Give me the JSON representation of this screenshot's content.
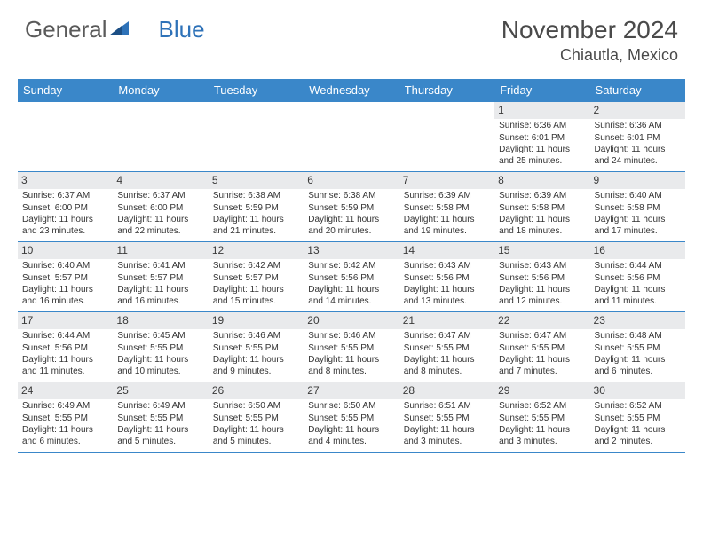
{
  "brand": {
    "general": "General",
    "blue": "Blue"
  },
  "title": "November 2024",
  "location": "Chiautla, Mexico",
  "colors": {
    "header_bg": "#3a87c9",
    "header_text": "#ffffff",
    "cell_border": "#3a87c9",
    "daynum_bg": "#e9eaec",
    "text": "#333333",
    "logo_gray": "#5a5a5a",
    "logo_blue": "#2e72b8",
    "title_color": "#4a4a4a"
  },
  "day_names": [
    "Sunday",
    "Monday",
    "Tuesday",
    "Wednesday",
    "Thursday",
    "Friday",
    "Saturday"
  ],
  "weeks": [
    [
      null,
      null,
      null,
      null,
      null,
      {
        "day": "1",
        "sunrise": "Sunrise: 6:36 AM",
        "sunset": "Sunset: 6:01 PM",
        "daylight": "Daylight: 11 hours and 25 minutes."
      },
      {
        "day": "2",
        "sunrise": "Sunrise: 6:36 AM",
        "sunset": "Sunset: 6:01 PM",
        "daylight": "Daylight: 11 hours and 24 minutes."
      }
    ],
    [
      {
        "day": "3",
        "sunrise": "Sunrise: 6:37 AM",
        "sunset": "Sunset: 6:00 PM",
        "daylight": "Daylight: 11 hours and 23 minutes."
      },
      {
        "day": "4",
        "sunrise": "Sunrise: 6:37 AM",
        "sunset": "Sunset: 6:00 PM",
        "daylight": "Daylight: 11 hours and 22 minutes."
      },
      {
        "day": "5",
        "sunrise": "Sunrise: 6:38 AM",
        "sunset": "Sunset: 5:59 PM",
        "daylight": "Daylight: 11 hours and 21 minutes."
      },
      {
        "day": "6",
        "sunrise": "Sunrise: 6:38 AM",
        "sunset": "Sunset: 5:59 PM",
        "daylight": "Daylight: 11 hours and 20 minutes."
      },
      {
        "day": "7",
        "sunrise": "Sunrise: 6:39 AM",
        "sunset": "Sunset: 5:58 PM",
        "daylight": "Daylight: 11 hours and 19 minutes."
      },
      {
        "day": "8",
        "sunrise": "Sunrise: 6:39 AM",
        "sunset": "Sunset: 5:58 PM",
        "daylight": "Daylight: 11 hours and 18 minutes."
      },
      {
        "day": "9",
        "sunrise": "Sunrise: 6:40 AM",
        "sunset": "Sunset: 5:58 PM",
        "daylight": "Daylight: 11 hours and 17 minutes."
      }
    ],
    [
      {
        "day": "10",
        "sunrise": "Sunrise: 6:40 AM",
        "sunset": "Sunset: 5:57 PM",
        "daylight": "Daylight: 11 hours and 16 minutes."
      },
      {
        "day": "11",
        "sunrise": "Sunrise: 6:41 AM",
        "sunset": "Sunset: 5:57 PM",
        "daylight": "Daylight: 11 hours and 16 minutes."
      },
      {
        "day": "12",
        "sunrise": "Sunrise: 6:42 AM",
        "sunset": "Sunset: 5:57 PM",
        "daylight": "Daylight: 11 hours and 15 minutes."
      },
      {
        "day": "13",
        "sunrise": "Sunrise: 6:42 AM",
        "sunset": "Sunset: 5:56 PM",
        "daylight": "Daylight: 11 hours and 14 minutes."
      },
      {
        "day": "14",
        "sunrise": "Sunrise: 6:43 AM",
        "sunset": "Sunset: 5:56 PM",
        "daylight": "Daylight: 11 hours and 13 minutes."
      },
      {
        "day": "15",
        "sunrise": "Sunrise: 6:43 AM",
        "sunset": "Sunset: 5:56 PM",
        "daylight": "Daylight: 11 hours and 12 minutes."
      },
      {
        "day": "16",
        "sunrise": "Sunrise: 6:44 AM",
        "sunset": "Sunset: 5:56 PM",
        "daylight": "Daylight: 11 hours and 11 minutes."
      }
    ],
    [
      {
        "day": "17",
        "sunrise": "Sunrise: 6:44 AM",
        "sunset": "Sunset: 5:56 PM",
        "daylight": "Daylight: 11 hours and 11 minutes."
      },
      {
        "day": "18",
        "sunrise": "Sunrise: 6:45 AM",
        "sunset": "Sunset: 5:55 PM",
        "daylight": "Daylight: 11 hours and 10 minutes."
      },
      {
        "day": "19",
        "sunrise": "Sunrise: 6:46 AM",
        "sunset": "Sunset: 5:55 PM",
        "daylight": "Daylight: 11 hours and 9 minutes."
      },
      {
        "day": "20",
        "sunrise": "Sunrise: 6:46 AM",
        "sunset": "Sunset: 5:55 PM",
        "daylight": "Daylight: 11 hours and 8 minutes."
      },
      {
        "day": "21",
        "sunrise": "Sunrise: 6:47 AM",
        "sunset": "Sunset: 5:55 PM",
        "daylight": "Daylight: 11 hours and 8 minutes."
      },
      {
        "day": "22",
        "sunrise": "Sunrise: 6:47 AM",
        "sunset": "Sunset: 5:55 PM",
        "daylight": "Daylight: 11 hours and 7 minutes."
      },
      {
        "day": "23",
        "sunrise": "Sunrise: 6:48 AM",
        "sunset": "Sunset: 5:55 PM",
        "daylight": "Daylight: 11 hours and 6 minutes."
      }
    ],
    [
      {
        "day": "24",
        "sunrise": "Sunrise: 6:49 AM",
        "sunset": "Sunset: 5:55 PM",
        "daylight": "Daylight: 11 hours and 6 minutes."
      },
      {
        "day": "25",
        "sunrise": "Sunrise: 6:49 AM",
        "sunset": "Sunset: 5:55 PM",
        "daylight": "Daylight: 11 hours and 5 minutes."
      },
      {
        "day": "26",
        "sunrise": "Sunrise: 6:50 AM",
        "sunset": "Sunset: 5:55 PM",
        "daylight": "Daylight: 11 hours and 5 minutes."
      },
      {
        "day": "27",
        "sunrise": "Sunrise: 6:50 AM",
        "sunset": "Sunset: 5:55 PM",
        "daylight": "Daylight: 11 hours and 4 minutes."
      },
      {
        "day": "28",
        "sunrise": "Sunrise: 6:51 AM",
        "sunset": "Sunset: 5:55 PM",
        "daylight": "Daylight: 11 hours and 3 minutes."
      },
      {
        "day": "29",
        "sunrise": "Sunrise: 6:52 AM",
        "sunset": "Sunset: 5:55 PM",
        "daylight": "Daylight: 11 hours and 3 minutes."
      },
      {
        "day": "30",
        "sunrise": "Sunrise: 6:52 AM",
        "sunset": "Sunset: 5:55 PM",
        "daylight": "Daylight: 11 hours and 2 minutes."
      }
    ]
  ]
}
